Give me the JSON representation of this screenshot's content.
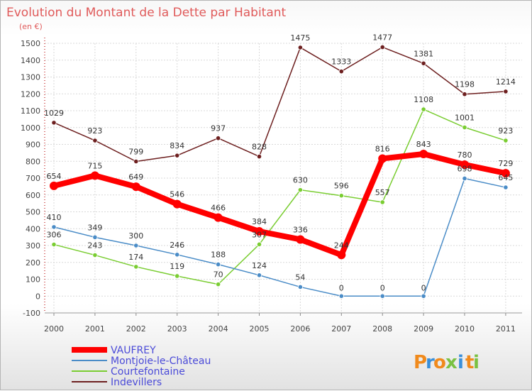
{
  "chart_data": {
    "type": "line",
    "title": "Evolution du Montant de la Dette par Habitant",
    "subtitle": "(en €)",
    "xlabel": "",
    "ylabel": "",
    "x": [
      "2000",
      "2001",
      "2002",
      "2003",
      "2004",
      "2005",
      "2006",
      "2007",
      "2008",
      "2009",
      "2010",
      "2011"
    ],
    "ylim": [
      -100,
      1500
    ],
    "yticks": [
      -100,
      0,
      100,
      200,
      300,
      400,
      500,
      600,
      700,
      800,
      900,
      1000,
      1100,
      1200,
      1300,
      1400,
      1500
    ],
    "grid": true,
    "legend_position": "bottom-left",
    "series": [
      {
        "name": "VAUFREY",
        "color": "#ff0000",
        "values": [
          654,
          715,
          649,
          546,
          466,
          384,
          336,
          244,
          816,
          843,
          780,
          729
        ],
        "labels": [
          "654",
          "715",
          "649",
          "546",
          "466",
          "384",
          "336",
          "244",
          "816",
          "843",
          "780",
          "729"
        ]
      },
      {
        "name": "Montjoie-le-Château",
        "color": "#4a8cc7",
        "values": [
          410,
          349,
          300,
          246,
          188,
          124,
          54,
          0,
          0,
          0,
          698,
          645
        ],
        "labels": [
          "410",
          "349",
          "300",
          "246",
          "188",
          "124",
          "54",
          "0",
          "0",
          "0",
          "698",
          "645"
        ]
      },
      {
        "name": "Courtefontaine",
        "color": "#7acd32",
        "values": [
          306,
          243,
          174,
          119,
          70,
          307,
          630,
          596,
          557,
          1108,
          1001,
          923
        ],
        "labels": [
          "306",
          "243",
          "174",
          "119",
          "70",
          "307",
          "630",
          "596",
          "557",
          "1108",
          "1001",
          "923"
        ]
      },
      {
        "name": "Indevillers",
        "color": "#6d1f1f",
        "values": [
          1029,
          923,
          799,
          834,
          937,
          828,
          1475,
          1333,
          1477,
          1381,
          1198,
          1214
        ],
        "labels": [
          "1029",
          "923",
          "799",
          "834",
          "937",
          "828",
          "1475",
          "1333",
          "1477",
          "1381",
          "1198",
          "1214"
        ]
      }
    ]
  },
  "logo": {
    "text": "Proxiti",
    "letters": [
      "P",
      "r",
      "o",
      "x",
      "i",
      "t",
      "i"
    ]
  }
}
